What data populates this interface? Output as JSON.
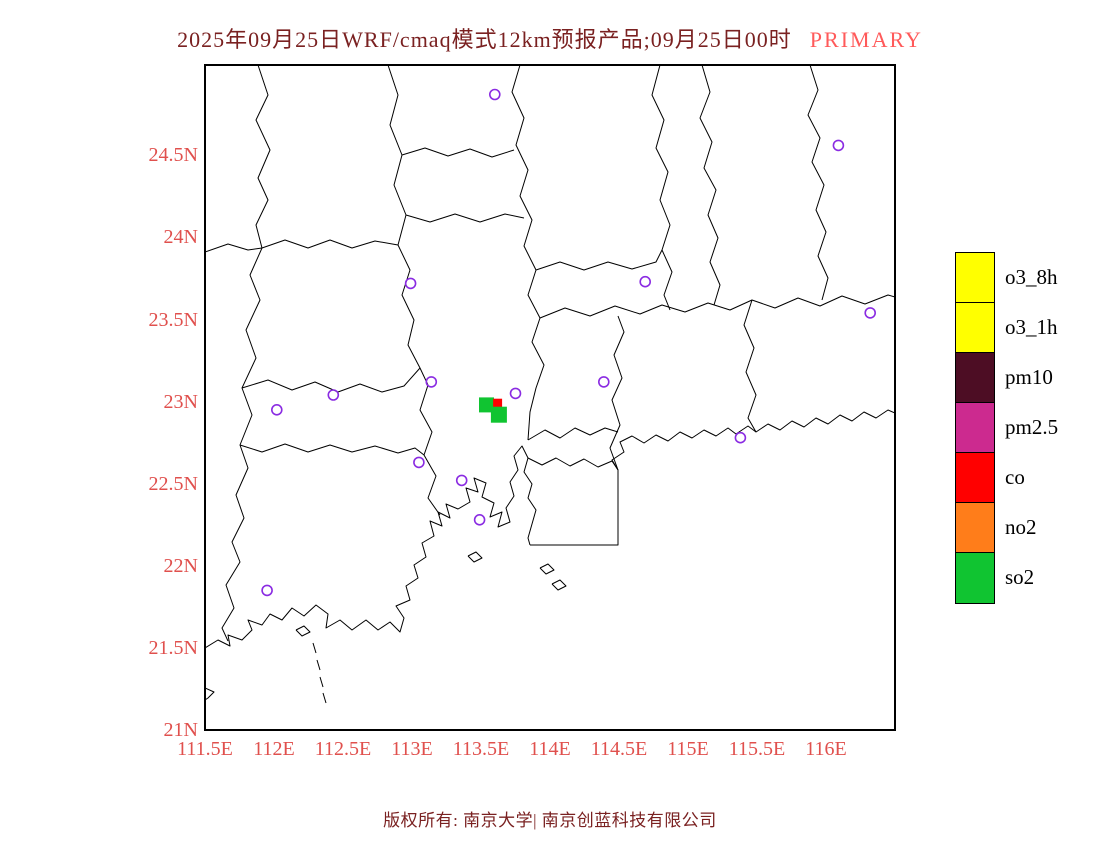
{
  "title": {
    "main": "2025年09月25日WRF/cmaq模式12km预报产品;09月25日00时",
    "tag": "PRIMARY"
  },
  "footer": {
    "text": "版权所有: 南京大学| 南京创蓝科技有限公司"
  },
  "axes": {
    "lat": [
      {
        "label": "24.5N",
        "value": 24.5
      },
      {
        "label": "24N",
        "value": 24
      },
      {
        "label": "23.5N",
        "value": 23.5
      },
      {
        "label": "23N",
        "value": 23
      },
      {
        "label": "22.5N",
        "value": 22.5
      },
      {
        "label": "22N",
        "value": 22
      },
      {
        "label": "21.5N",
        "value": 21.5
      },
      {
        "label": "21N",
        "value": 21
      }
    ],
    "lon": [
      {
        "label": "111.5E",
        "value": 111.5
      },
      {
        "label": "112E",
        "value": 112
      },
      {
        "label": "112.5E",
        "value": 112.5
      },
      {
        "label": "113E",
        "value": 113
      },
      {
        "label": "113.5E",
        "value": 113.5
      },
      {
        "label": "114E",
        "value": 114
      },
      {
        "label": "114.5E",
        "value": 114.5
      },
      {
        "label": "115E",
        "value": 115
      },
      {
        "label": "115.5E",
        "value": 115.5
      },
      {
        "label": "116E",
        "value": 116
      }
    ],
    "lon_range": [
      111.5,
      116.5
    ],
    "lat_range": [
      21.0,
      25.05
    ]
  },
  "legend": {
    "items": [
      {
        "label": "o3_8h",
        "color": "#ffff00"
      },
      {
        "label": "o3_1h",
        "color": "#ffff00"
      },
      {
        "label": "pm10",
        "color": "#4d0d24"
      },
      {
        "label": "pm2.5",
        "color": "#cc2a8f"
      },
      {
        "label": "co",
        "color": "#ff0000"
      },
      {
        "label": "no2",
        "color": "#ff7d1a"
      },
      {
        "label": "so2",
        "color": "#10c431"
      }
    ]
  },
  "map": {
    "stations": [
      {
        "lon": 113.6,
        "lat": 24.87
      },
      {
        "lon": 116.09,
        "lat": 24.56
      },
      {
        "lon": 112.99,
        "lat": 23.72
      },
      {
        "lon": 114.69,
        "lat": 23.73
      },
      {
        "lon": 116.32,
        "lat": 23.54
      },
      {
        "lon": 112.43,
        "lat": 23.04
      },
      {
        "lon": 113.14,
        "lat": 23.12
      },
      {
        "lon": 113.75,
        "lat": 23.05
      },
      {
        "lon": 114.39,
        "lat": 23.12
      },
      {
        "lon": 112.02,
        "lat": 22.95
      },
      {
        "lon": 115.38,
        "lat": 22.78
      },
      {
        "lon": 113.05,
        "lat": 22.63
      },
      {
        "lon": 113.36,
        "lat": 22.52
      },
      {
        "lon": 113.49,
        "lat": 22.28
      },
      {
        "lon": 111.95,
        "lat": 21.85
      }
    ],
    "cells": [
      {
        "lon": 113.54,
        "lat": 22.98,
        "size": 15,
        "color": "#10c431"
      },
      {
        "lon": 113.62,
        "lat": 22.99,
        "size": 9,
        "color": "#ff0000"
      },
      {
        "lon": 113.63,
        "lat": 22.92,
        "size": 16,
        "color": "#10c431"
      }
    ]
  },
  "colors": {
    "title_text": "#7a2121",
    "tag_text": "#ff5a5a",
    "axis_label": "#e0504d",
    "footer_text": "#7a2121",
    "station_marker": "#8a2be2",
    "boundary_line": "#000000"
  }
}
